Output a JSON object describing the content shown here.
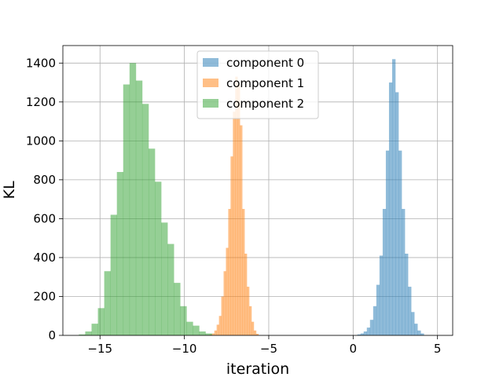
{
  "chart_data": {
    "type": "bar",
    "subtype": "histogram",
    "title": "",
    "xlabel": "iteration",
    "ylabel": "KL",
    "xlim": [
      -17.2,
      5.9
    ],
    "ylim": [
      0,
      1490
    ],
    "xticks": [
      -15,
      -10,
      -5,
      0,
      5
    ],
    "xtick_labels": [
      "−15",
      "−10",
      "−5",
      "0",
      "5"
    ],
    "yticks": [
      0,
      200,
      400,
      600,
      800,
      1000,
      1200,
      1400
    ],
    "ytick_labels": [
      "0",
      "200",
      "400",
      "600",
      "800",
      "1000",
      "1200",
      "1400"
    ],
    "grid": true,
    "legend_position": "upper center",
    "series": [
      {
        "name": "component 0",
        "color": "#1f77b4",
        "bin_width": 0.1875,
        "bin_starts": [
          0.25,
          0.4375,
          0.625,
          0.8125,
          1.0,
          1.1875,
          1.375,
          1.5625,
          1.75,
          1.9375,
          2.125,
          2.3125,
          2.5,
          2.6875,
          2.875,
          3.0625,
          3.25,
          3.4375,
          3.625,
          3.8125,
          4.0
        ],
        "values": [
          5,
          10,
          20,
          40,
          80,
          150,
          260,
          410,
          650,
          950,
          1300,
          1420,
          1250,
          950,
          650,
          420,
          250,
          120,
          60,
          25,
          10
        ]
      },
      {
        "name": "component 1",
        "color": "#ff7f0e",
        "bin_width": 0.1375,
        "bin_starts": [
          -8.5,
          -8.3625,
          -8.225,
          -8.0875,
          -7.95,
          -7.8125,
          -7.675,
          -7.5375,
          -7.4,
          -7.2625,
          -7.125,
          -6.9875,
          -6.85,
          -6.7125,
          -6.575,
          -6.4375,
          -6.3,
          -6.1625,
          -6.025,
          -5.8875,
          -5.75
        ],
        "values": [
          5,
          10,
          25,
          55,
          100,
          200,
          330,
          450,
          650,
          920,
          1150,
          1330,
          1290,
          1080,
          650,
          420,
          250,
          150,
          70,
          25,
          8
        ]
      },
      {
        "name": "component 2",
        "color": "#2ca02c",
        "bin_width": 0.375,
        "bin_starts": [
          -16.25,
          -15.875,
          -15.5,
          -15.125,
          -14.75,
          -14.375,
          -14.0,
          -13.625,
          -13.25,
          -12.875,
          -12.5,
          -12.125,
          -11.75,
          -11.375,
          -11.0,
          -10.625,
          -10.25,
          -9.875,
          -9.5,
          -9.125,
          -8.75
        ],
        "values": [
          5,
          20,
          60,
          140,
          330,
          620,
          840,
          1290,
          1400,
          1310,
          1190,
          960,
          790,
          580,
          470,
          270,
          150,
          70,
          50,
          20,
          10
        ]
      }
    ]
  }
}
